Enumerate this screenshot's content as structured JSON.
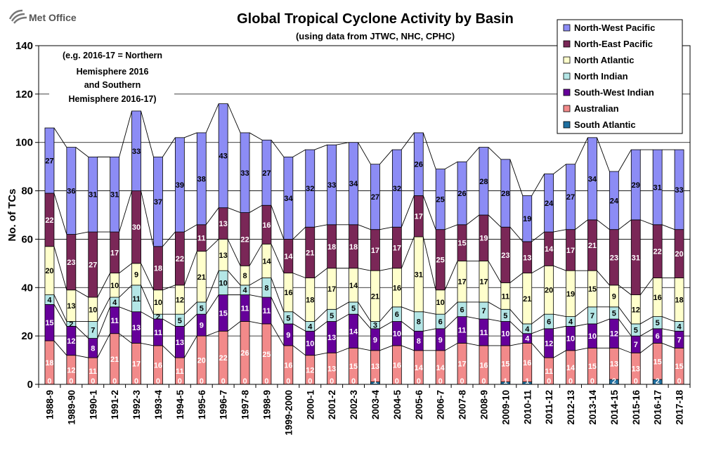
{
  "logo": {
    "text": "Met Office"
  },
  "chart_data": {
    "type": "bar",
    "stacked": true,
    "title": "Global Tropical Cyclone Activity by Basin",
    "subtitle": "(using data from JTWC, NHC, CPHC)",
    "note": [
      "(e.g. 2016-17 = Northern",
      "Hemisphere 2016",
      "and Southern",
      "Hemisphere 2016-17)"
    ],
    "ylabel": "No. of TCs",
    "xlabel": "",
    "ylim": [
      0,
      140
    ],
    "yticks": [
      0,
      20,
      40,
      60,
      80,
      100,
      120,
      140
    ],
    "grid": true,
    "legend_position": "top-right",
    "categories": [
      "1988-9",
      "1989-90",
      "1990-1",
      "1991-2",
      "1992-3",
      "1993-4",
      "1994-5",
      "1995-6",
      "1996-7",
      "1997-8",
      "1998-9",
      "1999-2000",
      "2000-1",
      "2001-2",
      "2002-3",
      "2003-4",
      "2004-5",
      "2005-6",
      "2006-7",
      "2007-8",
      "2008-9",
      "2009-10",
      "2010-11",
      "2011-12",
      "2012-13",
      "2013-14",
      "2014-15",
      "2015-16",
      "2016-17",
      "2017-18"
    ],
    "series": [
      {
        "name": "South Atlantic",
        "color": "#1f6fa0",
        "values": [
          0,
          0,
          0,
          0,
          0,
          0,
          0,
          0,
          0,
          0,
          0,
          0,
          0,
          0,
          0,
          1,
          0,
          0,
          0,
          0,
          0,
          1,
          1,
          0,
          0,
          0,
          2,
          0,
          2,
          0
        ]
      },
      {
        "name": "Australian",
        "color": "#f28a8a",
        "values": [
          18,
          12,
          11,
          21,
          17,
          16,
          11,
          20,
          22,
          26,
          25,
          16,
          12,
          13,
          15,
          13,
          16,
          14,
          14,
          17,
          16,
          15,
          16,
          11,
          14,
          15,
          13,
          13,
          15,
          15
        ]
      },
      {
        "name": "South-West Indian",
        "color": "#66009a",
        "values": [
          15,
          12,
          8,
          11,
          13,
          11,
          13,
          9,
          15,
          11,
          11,
          9,
          10,
          13,
          14,
          9,
          10,
          8,
          9,
          11,
          11,
          10,
          4,
          12,
          10,
          10,
          12,
          7,
          6,
          7
        ]
      },
      {
        "name": "North Indian",
        "color": "#b4e6e6",
        "values": [
          4,
          2,
          7,
          4,
          11,
          2,
          5,
          5,
          10,
          4,
          8,
          5,
          4,
          5,
          5,
          3,
          6,
          8,
          6,
          6,
          7,
          5,
          4,
          6,
          4,
          7,
          5,
          5,
          5,
          4
        ]
      },
      {
        "name": "North Atlantic",
        "color": "#ffffcc",
        "values": [
          20,
          13,
          10,
          10,
          9,
          10,
          12,
          21,
          13,
          8,
          14,
          16,
          18,
          17,
          14,
          21,
          16,
          31,
          10,
          17,
          17,
          11,
          21,
          20,
          19,
          15,
          9,
          12,
          16,
          18
        ]
      },
      {
        "name": "North-East Pacific",
        "color": "#7a2757",
        "values": [
          22,
          23,
          27,
          17,
          30,
          18,
          22,
          11,
          13,
          22,
          16,
          14,
          21,
          18,
          18,
          17,
          17,
          17,
          25,
          15,
          19,
          23,
          13,
          14,
          17,
          21,
          23,
          31,
          22,
          20
        ]
      },
      {
        "name": "North-West Pacific",
        "color": "#8c8cf5",
        "values": [
          27,
          36,
          31,
          31,
          33,
          37,
          39,
          38,
          43,
          33,
          27,
          34,
          32,
          33,
          34,
          27,
          32,
          26,
          25,
          26,
          28,
          28,
          19,
          24,
          27,
          34,
          24,
          29,
          31,
          33
        ]
      }
    ],
    "legend_order": [
      "North-West Pacific",
      "North-East Pacific",
      "North Atlantic",
      "North Indian",
      "South-West Indian",
      "Australian",
      "South Atlantic"
    ]
  }
}
